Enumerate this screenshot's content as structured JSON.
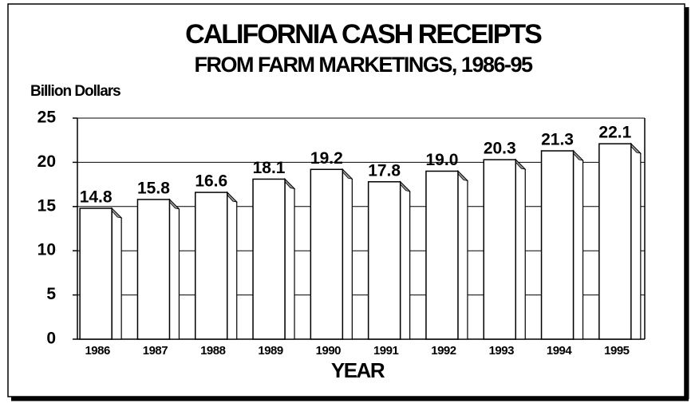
{
  "chart_data": {
    "type": "bar",
    "title": "CALIFORNIA CASH RECEIPTS",
    "subtitle": "FROM FARM MARKETINGS, 1986-95",
    "y_label": "Billion Dollars",
    "x_label": "YEAR",
    "categories": [
      "1986",
      "1987",
      "1988",
      "1989",
      "1990",
      "1991",
      "1992",
      "1993",
      "1994",
      "1995"
    ],
    "values": [
      14.8,
      15.8,
      16.6,
      18.1,
      19.2,
      17.8,
      19.0,
      20.3,
      21.3,
      22.1
    ],
    "value_labels": [
      "14.8",
      "15.8",
      "16.6",
      "18.1",
      "19.2",
      "17.8",
      "19.0",
      "20.3",
      "21.3",
      "22.1"
    ],
    "color": "#ffffff",
    "ylim": [
      0,
      25
    ],
    "yticks": [
      0,
      5,
      10,
      15,
      20,
      25
    ],
    "grid": true
  }
}
